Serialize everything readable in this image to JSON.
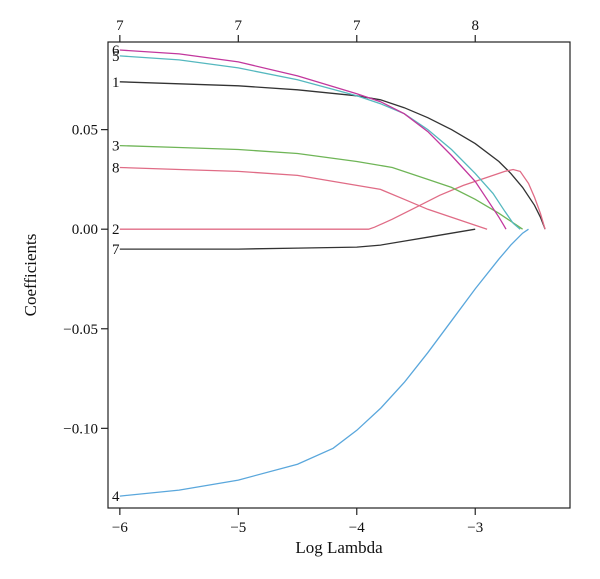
{
  "chart_data": {
    "type": "line",
    "xlabel": "Log Lambda",
    "ylabel": "Coefficients",
    "xlim": [
      -6.1,
      -2.2
    ],
    "ylim": [
      -0.14,
      0.094
    ],
    "x_ticks": [
      -6,
      -5,
      -4,
      -3
    ],
    "x_tick_labels": [
      "−6",
      "−5",
      "−4",
      "−3"
    ],
    "y_ticks": [
      -0.1,
      -0.05,
      0.0,
      0.05
    ],
    "y_tick_labels": [
      "−0.10",
      "−0.05",
      "0.00",
      "0.05"
    ],
    "top_axis": {
      "ticks": [
        -6,
        -5,
        -4,
        -3
      ],
      "labels": [
        "7",
        "7",
        "7",
        "8"
      ]
    },
    "grid": false,
    "legend": "none",
    "series": [
      {
        "name": "1",
        "color": "#333333",
        "points": [
          [
            -6.0,
            0.074
          ],
          [
            -5.5,
            0.073
          ],
          [
            -5.0,
            0.072
          ],
          [
            -4.5,
            0.07
          ],
          [
            -4.0,
            0.067
          ],
          [
            -3.8,
            0.065
          ],
          [
            -3.6,
            0.061
          ],
          [
            -3.4,
            0.056
          ],
          [
            -3.2,
            0.05
          ],
          [
            -3.0,
            0.043
          ],
          [
            -2.8,
            0.034
          ],
          [
            -2.7,
            0.028
          ],
          [
            -2.6,
            0.021
          ],
          [
            -2.5,
            0.012
          ],
          [
            -2.45,
            0.006
          ],
          [
            -2.41,
            0.0
          ]
        ]
      },
      {
        "name": "2",
        "color": "#e06c86",
        "points": [
          [
            -6.0,
            0.0
          ],
          [
            -5.0,
            0.0
          ],
          [
            -4.0,
            0.0
          ],
          [
            -3.9,
            0.0
          ],
          [
            -3.85,
            0.001
          ],
          [
            -3.7,
            0.005
          ],
          [
            -3.5,
            0.011
          ],
          [
            -3.3,
            0.017
          ],
          [
            -3.1,
            0.022
          ],
          [
            -2.9,
            0.026
          ],
          [
            -2.75,
            0.029
          ],
          [
            -2.68,
            0.03
          ],
          [
            -2.62,
            0.029
          ],
          [
            -2.55,
            0.023
          ],
          [
            -2.5,
            0.016
          ],
          [
            -2.45,
            0.008
          ],
          [
            -2.41,
            0.0
          ]
        ]
      },
      {
        "name": "3",
        "color": "#6fb557",
        "points": [
          [
            -6.0,
            0.042
          ],
          [
            -5.5,
            0.041
          ],
          [
            -5.0,
            0.04
          ],
          [
            -4.5,
            0.038
          ],
          [
            -4.0,
            0.034
          ],
          [
            -3.7,
            0.031
          ],
          [
            -3.4,
            0.025
          ],
          [
            -3.2,
            0.021
          ],
          [
            -3.0,
            0.015
          ],
          [
            -2.8,
            0.008
          ],
          [
            -2.65,
            0.002
          ],
          [
            -2.6,
            0.0
          ]
        ]
      },
      {
        "name": "4",
        "color": "#5aa7dc",
        "points": [
          [
            -6.0,
            -0.134
          ],
          [
            -5.5,
            -0.131
          ],
          [
            -5.0,
            -0.126
          ],
          [
            -4.5,
            -0.118
          ],
          [
            -4.2,
            -0.11
          ],
          [
            -4.0,
            -0.101
          ],
          [
            -3.8,
            -0.09
          ],
          [
            -3.6,
            -0.077
          ],
          [
            -3.4,
            -0.062
          ],
          [
            -3.2,
            -0.046
          ],
          [
            -3.0,
            -0.03
          ],
          [
            -2.8,
            -0.015
          ],
          [
            -2.7,
            -0.008
          ],
          [
            -2.6,
            -0.002
          ],
          [
            -2.55,
            0.0
          ]
        ]
      },
      {
        "name": "5",
        "color": "#55b8bf",
        "points": [
          [
            -6.0,
            0.087
          ],
          [
            -5.5,
            0.085
          ],
          [
            -5.0,
            0.081
          ],
          [
            -4.5,
            0.075
          ],
          [
            -4.0,
            0.067
          ],
          [
            -3.8,
            0.063
          ],
          [
            -3.6,
            0.058
          ],
          [
            -3.4,
            0.05
          ],
          [
            -3.2,
            0.04
          ],
          [
            -3.0,
            0.028
          ],
          [
            -2.85,
            0.018
          ],
          [
            -2.75,
            0.009
          ],
          [
            -2.68,
            0.003
          ],
          [
            -2.62,
            0.0
          ]
        ]
      },
      {
        "name": "6",
        "color": "#c2379d",
        "points": [
          [
            -6.0,
            0.09
          ],
          [
            -5.5,
            0.088
          ],
          [
            -5.0,
            0.084
          ],
          [
            -4.5,
            0.077
          ],
          [
            -4.0,
            0.068
          ],
          [
            -3.8,
            0.064
          ],
          [
            -3.6,
            0.058
          ],
          [
            -3.4,
            0.049
          ],
          [
            -3.2,
            0.037
          ],
          [
            -3.0,
            0.024
          ],
          [
            -2.9,
            0.015
          ],
          [
            -2.8,
            0.006
          ],
          [
            -2.76,
            0.002
          ],
          [
            -2.74,
            0.0
          ]
        ]
      },
      {
        "name": "7",
        "color": "#333333",
        "points": [
          [
            -6.0,
            -0.01
          ],
          [
            -5.5,
            -0.01
          ],
          [
            -5.0,
            -0.01
          ],
          [
            -4.5,
            -0.0095
          ],
          [
            -4.0,
            -0.009
          ],
          [
            -3.8,
            -0.008
          ],
          [
            -3.6,
            -0.006
          ],
          [
            -3.4,
            -0.004
          ],
          [
            -3.2,
            -0.002
          ],
          [
            -3.05,
            -0.0005
          ],
          [
            -3.0,
            0.0
          ]
        ]
      },
      {
        "name": "8",
        "color": "#e06c86",
        "points": [
          [
            -6.0,
            0.031
          ],
          [
            -5.5,
            0.03
          ],
          [
            -5.0,
            0.029
          ],
          [
            -4.5,
            0.027
          ],
          [
            -4.0,
            0.022
          ],
          [
            -3.8,
            0.02
          ],
          [
            -3.6,
            0.015
          ],
          [
            -3.4,
            0.01
          ],
          [
            -3.2,
            0.006
          ],
          [
            -3.0,
            0.002
          ],
          [
            -2.9,
            0.0
          ]
        ]
      }
    ]
  }
}
